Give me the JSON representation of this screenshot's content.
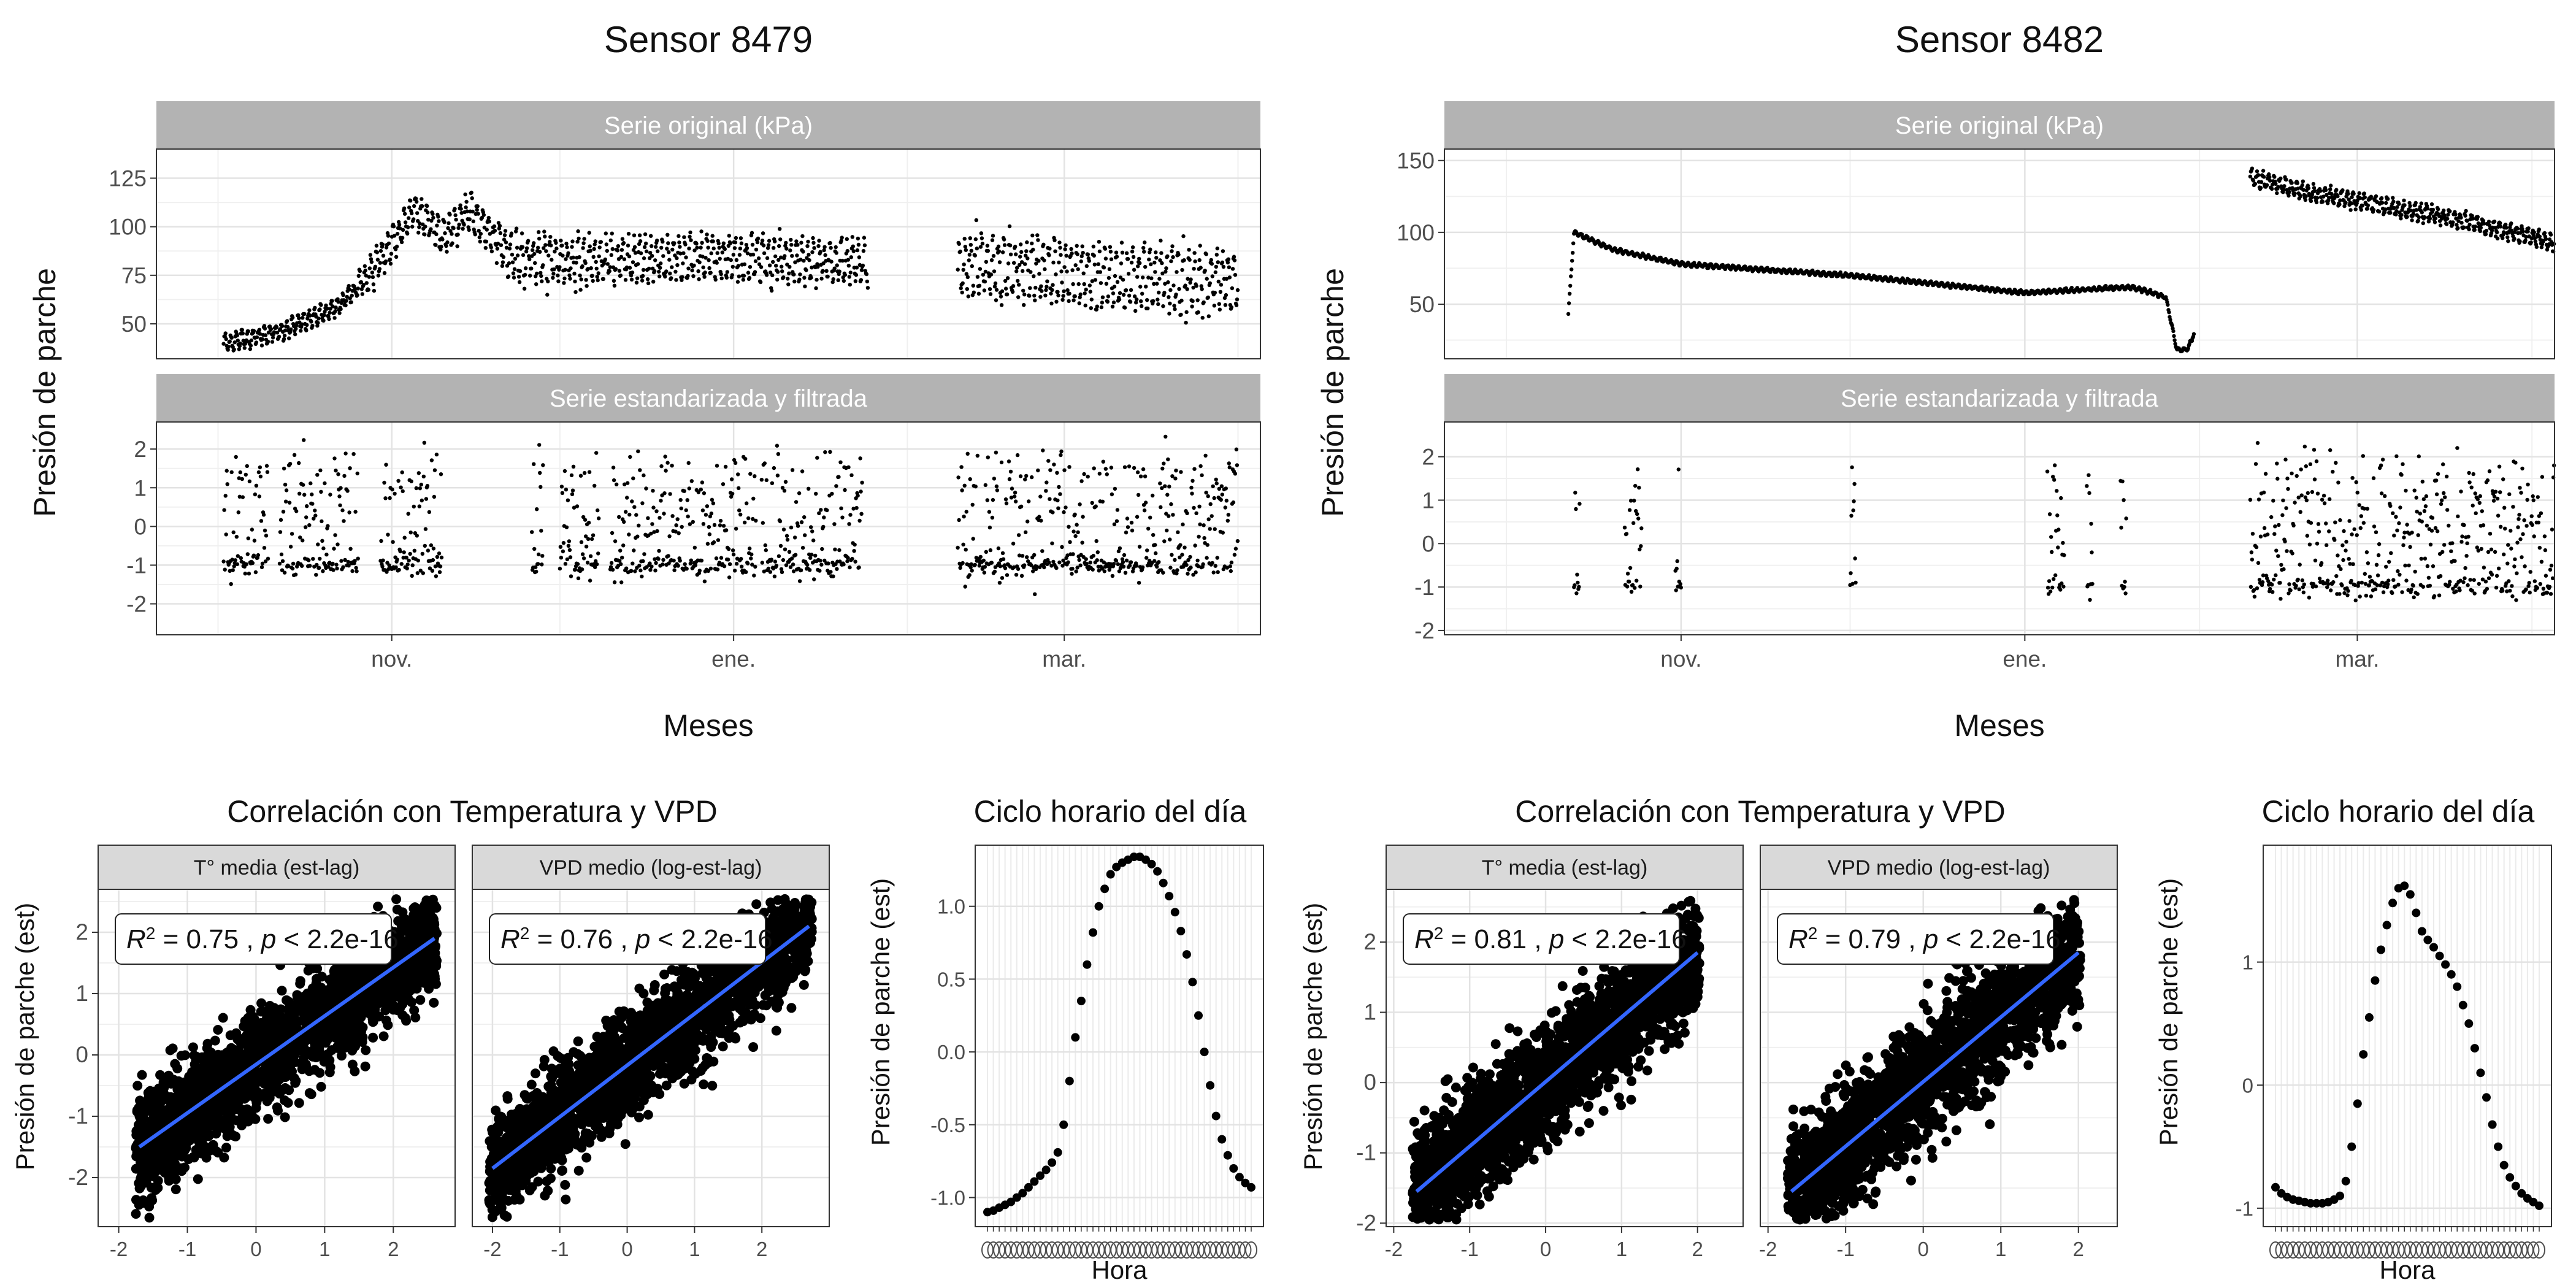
{
  "figure": {
    "sensors": [
      {
        "title": "Sensor 8479",
        "ylabel": "Presión de parche",
        "xlabel": "Meses",
        "month_ticks": [
          "nov.",
          "ene.",
          "mar."
        ],
        "top_panel": {
          "strip": "Serie original (kPa)",
          "yticks": [
            50,
            75,
            100,
            125
          ],
          "ylim": [
            32,
            140
          ]
        },
        "bottom_panel": {
          "strip": "Serie estandarizada y filtrada",
          "yticks": [
            -2,
            -1,
            0,
            1,
            2
          ],
          "ylim": [
            -2.8,
            2.7
          ]
        },
        "correlation": {
          "title": "Correlación con Temperatura y VPD",
          "ylabel": "Presión de parche (est)",
          "ylim": [
            -2.8,
            2.7
          ],
          "yticks": [
            -2,
            -1,
            0,
            1,
            2
          ],
          "xticks": [
            -2,
            -1,
            0,
            1,
            2
          ],
          "facets": [
            {
              "strip": "T° media (est-lag)",
              "r2": "0.75",
              "p": "< 2.2e-16",
              "xlim": [
                -2.3,
                2.9
              ]
            },
            {
              "strip": "VPD medio (log-est-lag)",
              "r2": "0.76",
              "p": "< 2.2e-16",
              "xlim": [
                -2.3,
                3.0
              ]
            }
          ]
        },
        "hourly": {
          "title": "Ciclo horario del día",
          "ylabel": "Presión de parche (est)",
          "xlabel": "Hora",
          "yticks": [
            "-1.0",
            "-0.5",
            "0.0",
            "0.5",
            "1.0"
          ],
          "ylim": [
            -1.2,
            1.42
          ]
        }
      },
      {
        "title": "Sensor 8482",
        "ylabel": "Presión de parche",
        "xlabel": "Meses",
        "month_ticks": [
          "nov.",
          "ene.",
          "mar."
        ],
        "top_panel": {
          "strip": "Serie original (kPa)",
          "yticks": [
            50,
            100,
            150
          ],
          "ylim": [
            12,
            158
          ]
        },
        "bottom_panel": {
          "strip": "Serie estandarizada y filtrada",
          "yticks": [
            -2,
            -1,
            0,
            1,
            2
          ],
          "ylim": [
            -2.1,
            2.8
          ]
        },
        "correlation": {
          "title": "Correlación con Temperatura y VPD",
          "ylabel": "Presión de parche (est)",
          "ylim": [
            -2.05,
            2.75
          ],
          "yticks": [
            -2,
            -1,
            0,
            1,
            2
          ],
          "xticks": [
            -2,
            -1,
            0,
            1,
            2
          ],
          "facets": [
            {
              "strip": "T° media (est-lag)",
              "r2": "0.81",
              "p": "< 2.2e-16",
              "xlim": [
                -2.1,
                2.6
              ]
            },
            {
              "strip": "VPD medio (log-est-lag)",
              "r2": "0.79",
              "p": "< 2.2e-16",
              "xlim": [
                -2.1,
                2.5
              ]
            }
          ]
        },
        "hourly": {
          "title": "Ciclo horario del día",
          "ylabel": "Presión de parche (est)",
          "xlabel": "Hora",
          "yticks": [
            "-1",
            "0",
            "1"
          ],
          "ylim": [
            -1.15,
            1.95
          ]
        }
      }
    ]
  },
  "chart_data": [
    {
      "type": "scatter",
      "title": "Sensor 8479",
      "panel": "Serie original (kPa)",
      "xlabel": "Meses",
      "ylabel": "Presión de parche",
      "x_range": [
        "2020-09-20",
        "2021-04-05"
      ],
      "ylim": [
        32,
        140
      ],
      "trend_points": [
        {
          "x": "2020-10-02",
          "y": 40
        },
        {
          "x": "2020-10-12",
          "y": 46
        },
        {
          "x": "2020-10-22",
          "y": 58
        },
        {
          "x": "2020-10-28",
          "y": 75
        },
        {
          "x": "2020-11-02",
          "y": 95
        },
        {
          "x": "2020-11-05",
          "y": 110
        },
        {
          "x": "2020-11-10",
          "y": 95
        },
        {
          "x": "2020-11-15",
          "y": 108
        },
        {
          "x": "2020-11-22",
          "y": 85
        },
        {
          "x": "2020-12-05",
          "y": 82
        },
        {
          "x": "2020-12-25",
          "y": 84
        },
        {
          "x": "2021-01-10",
          "y": 83
        },
        {
          "x": "2021-01-22",
          "y": 82
        },
        {
          "x": "2021-02-10",
          "y": 80
        },
        {
          "x": "2021-03-10",
          "y": 74
        },
        {
          "x": "2021-04-01",
          "y": 72
        }
      ],
      "gap": [
        "2021-01-25",
        "2021-02-10"
      ]
    },
    {
      "type": "scatter",
      "title": "Sensor 8479",
      "panel": "Serie estandarizada y filtrada",
      "ylim": [
        -2.8,
        2.7
      ],
      "value_range": [
        -2.5,
        2.4
      ],
      "segments": [
        [
          "2020-10-02",
          "2020-10-10"
        ],
        [
          "2020-10-12",
          "2020-10-26"
        ],
        [
          "2020-10-30",
          "2020-11-10"
        ],
        [
          "2020-11-26",
          "2020-11-28"
        ],
        [
          "2020-12-01",
          "2020-12-08"
        ],
        [
          "2020-12-10",
          "2021-01-05"
        ],
        [
          "2021-01-06",
          "2021-01-24"
        ],
        [
          "2021-02-10",
          "2021-04-01"
        ]
      ]
    },
    {
      "type": "scatter",
      "title": "Sensor 8482",
      "panel": "Serie original (kPa)",
      "ylim": [
        12,
        158
      ],
      "trend_points": [
        {
          "x": "2020-10-12",
          "y": 44
        },
        {
          "x": "2020-10-13",
          "y": 100
        },
        {
          "x": "2020-10-20",
          "y": 88
        },
        {
          "x": "2020-11-01",
          "y": 78
        },
        {
          "x": "2020-12-01",
          "y": 70
        },
        {
          "x": "2021-01-01",
          "y": 58
        },
        {
          "x": "2021-01-20",
          "y": 62
        },
        {
          "x": "2021-01-26",
          "y": 55
        },
        {
          "x": "2021-01-28",
          "y": 18
        },
        {
          "x": "2021-01-30",
          "y": 19
        },
        {
          "x": "2021-02-10",
          "y": 138
        },
        {
          "x": "2021-02-20",
          "y": 128
        },
        {
          "x": "2021-03-15",
          "y": 112
        },
        {
          "x": "2021-04-05",
          "y": 93
        }
      ]
    },
    {
      "type": "scatter",
      "title": "Sensor 8482",
      "panel": "Serie estandarizada y filtrada",
      "ylim": [
        -2.1,
        2.8
      ],
      "value_range": [
        -1.8,
        2.5
      ],
      "segments": [
        [
          "2020-10-13",
          "2020-10-14"
        ],
        [
          "2020-10-22",
          "2020-10-25"
        ],
        [
          "2020-10-31",
          "2020-11-01"
        ],
        [
          "2020-12-01",
          "2020-12-02"
        ],
        [
          "2021-01-05",
          "2021-01-08"
        ],
        [
          "2021-01-12",
          "2021-01-13"
        ],
        [
          "2021-01-18",
          "2021-01-19"
        ],
        [
          "2021-02-10",
          "2021-04-05"
        ]
      ]
    },
    {
      "type": "scatter",
      "title": "Correlación con Temperatura y VPD",
      "facet": "T° media (est-lag)",
      "sensor": "Sensor 8479",
      "fit_line": {
        "x": [
          -1.7,
          2.6
        ],
        "y": [
          -1.5,
          1.9
        ]
      },
      "r2": 0.75
    },
    {
      "type": "scatter",
      "title": "Correlación con Temperatura y VPD",
      "facet": "VPD medio (log-est-lag)",
      "sensor": "Sensor 8479",
      "fit_line": {
        "x": [
          -2.0,
          2.7
        ],
        "y": [
          -1.85,
          2.1
        ]
      },
      "r2": 0.76
    },
    {
      "type": "scatter",
      "title": "Correlación con Temperatura y VPD",
      "facet": "T° media (est-lag)",
      "sensor": "Sensor 8482",
      "fit_line": {
        "x": [
          -1.7,
          2.0
        ],
        "y": [
          -1.55,
          1.85
        ]
      },
      "r2": 0.81
    },
    {
      "type": "scatter",
      "title": "Correlación con Temperatura y VPD",
      "facet": "VPD medio (log-est-lag)",
      "sensor": "Sensor 8482",
      "fit_line": {
        "x": [
          -1.7,
          2.0
        ],
        "y": [
          -1.55,
          1.85
        ]
      },
      "r2": 0.79
    },
    {
      "type": "scatter",
      "title": "Ciclo horario del día",
      "sensor": "Sensor 8479",
      "xlabel": "Hora",
      "ylabel": "Presión de parche (est)",
      "values": [
        -1.1,
        -1.09,
        -1.07,
        -1.05,
        -1.03,
        -1.0,
        -0.97,
        -0.93,
        -0.89,
        -0.85,
        -0.81,
        -0.76,
        -0.69,
        -0.5,
        -0.2,
        0.1,
        0.35,
        0.6,
        0.82,
        1.0,
        1.12,
        1.22,
        1.27,
        1.3,
        1.32,
        1.34,
        1.34,
        1.32,
        1.29,
        1.24,
        1.16,
        1.07,
        0.96,
        0.83,
        0.67,
        0.48,
        0.25,
        0.0,
        -0.23,
        -0.44,
        -0.6,
        -0.71,
        -0.8,
        -0.86,
        -0.9,
        -0.93
      ]
    },
    {
      "type": "scatter",
      "title": "Ciclo horario del día",
      "sensor": "Sensor 8482",
      "xlabel": "Hora",
      "ylabel": "Presión de parche (est)",
      "values": [
        -0.83,
        -0.88,
        -0.91,
        -0.93,
        -0.94,
        -0.95,
        -0.96,
        -0.96,
        -0.96,
        -0.95,
        -0.93,
        -0.9,
        -0.78,
        -0.5,
        -0.15,
        0.25,
        0.55,
        0.85,
        1.1,
        1.3,
        1.48,
        1.6,
        1.62,
        1.55,
        1.4,
        1.25,
        1.18,
        1.12,
        1.05,
        0.98,
        0.9,
        0.8,
        0.65,
        0.5,
        0.3,
        0.1,
        -0.1,
        -0.32,
        -0.5,
        -0.65,
        -0.75,
        -0.82,
        -0.88,
        -0.92,
        -0.95,
        -0.98
      ]
    }
  ]
}
